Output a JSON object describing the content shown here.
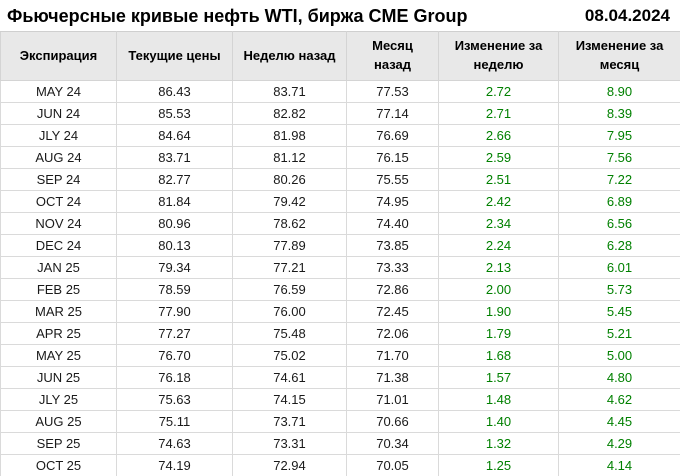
{
  "header": {
    "title": "Фьючерсные кривые нефть WTI, биржа CME Group",
    "date": "08.04.2024"
  },
  "colors": {
    "positive_change_text": "#008000",
    "header_background": "#e8e8e8",
    "grid_line": "#dadada"
  },
  "chart_data": {
    "type": "table",
    "title": "Фьючерсные кривые нефть WTI, биржа CME Group",
    "date_label": "08.04.2024",
    "columns": [
      "Экспирация",
      "Текущие цены",
      "Неделю назад",
      "Месяц назад",
      "Изменение за неделю",
      "Изменение за месяц"
    ],
    "rows": [
      [
        "MAY 24",
        "86.43",
        "83.71",
        "77.53",
        "2.72",
        "8.90"
      ],
      [
        "JUN 24",
        "85.53",
        "82.82",
        "77.14",
        "2.71",
        "8.39"
      ],
      [
        "JLY 24",
        "84.64",
        "81.98",
        "76.69",
        "2.66",
        "7.95"
      ],
      [
        "AUG 24",
        "83.71",
        "81.12",
        "76.15",
        "2.59",
        "7.56"
      ],
      [
        "SEP 24",
        "82.77",
        "80.26",
        "75.55",
        "2.51",
        "7.22"
      ],
      [
        "OCT 24",
        "81.84",
        "79.42",
        "74.95",
        "2.42",
        "6.89"
      ],
      [
        "NOV 24",
        "80.96",
        "78.62",
        "74.40",
        "2.34",
        "6.56"
      ],
      [
        "DEC 24",
        "80.13",
        "77.89",
        "73.85",
        "2.24",
        "6.28"
      ],
      [
        "JAN 25",
        "79.34",
        "77.21",
        "73.33",
        "2.13",
        "6.01"
      ],
      [
        "FEB 25",
        "78.59",
        "76.59",
        "72.86",
        "2.00",
        "5.73"
      ],
      [
        "MAR 25",
        "77.90",
        "76.00",
        "72.45",
        "1.90",
        "5.45"
      ],
      [
        "APR 25",
        "77.27",
        "75.48",
        "72.06",
        "1.79",
        "5.21"
      ],
      [
        "MAY 25",
        "76.70",
        "75.02",
        "71.70",
        "1.68",
        "5.00"
      ],
      [
        "JUN 25",
        "76.18",
        "74.61",
        "71.38",
        "1.57",
        "4.80"
      ],
      [
        "JLY 25",
        "75.63",
        "74.15",
        "71.01",
        "1.48",
        "4.62"
      ],
      [
        "AUG 25",
        "75.11",
        "73.71",
        "70.66",
        "1.40",
        "4.45"
      ],
      [
        "SEP 25",
        "74.63",
        "73.31",
        "70.34",
        "1.32",
        "4.29"
      ],
      [
        "OCT 25",
        "74.19",
        "72.94",
        "70.05",
        "1.25",
        "4.14"
      ]
    ],
    "change_columns_indices": [
      4,
      5
    ],
    "change_color": "#008000"
  }
}
